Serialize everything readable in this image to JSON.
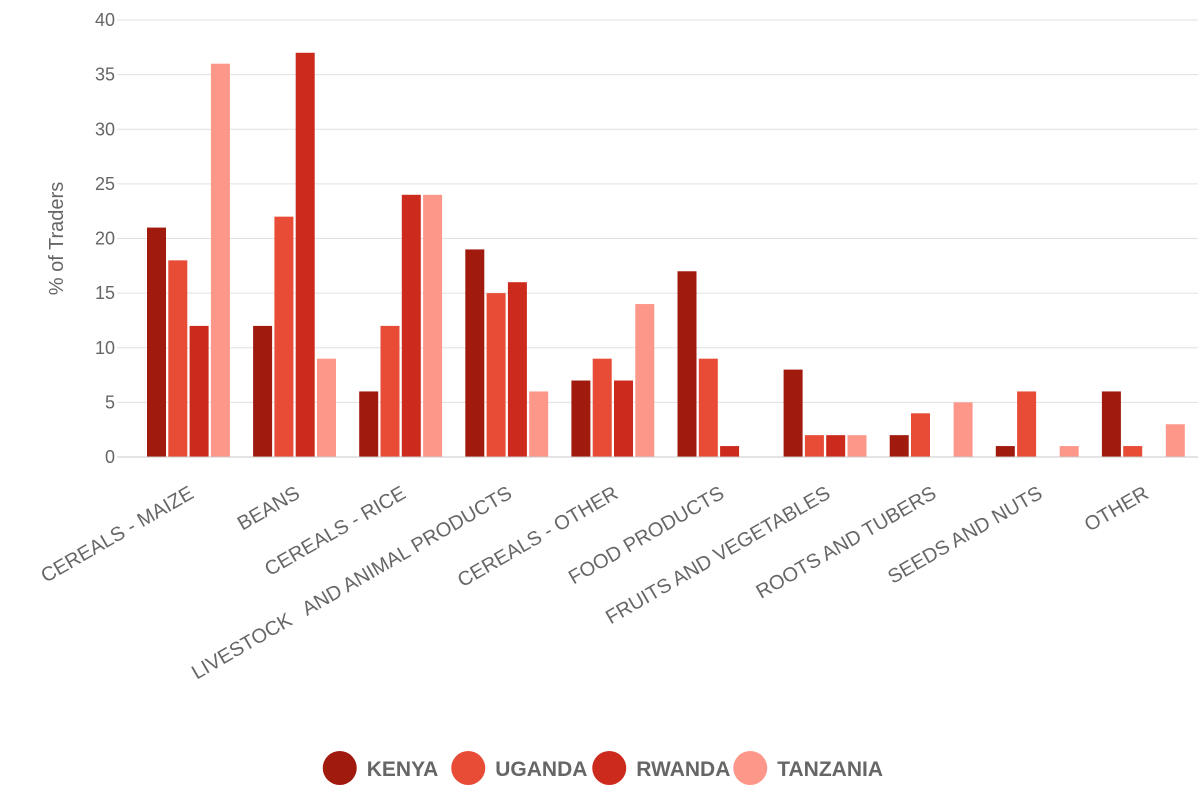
{
  "chart_data": {
    "type": "bar",
    "ylabel": "% of Traders",
    "ylim": [
      0,
      40
    ],
    "yticks": [
      0,
      5,
      10,
      15,
      20,
      25,
      30,
      35,
      40
    ],
    "grid": true,
    "legend_position": "bottom",
    "categories": [
      "CEREALS - MAIZE",
      "BEANS",
      "CEREALS - RICE",
      "LIVESTOCK   AND ANIMAL PRODUCTS",
      "CEREALS - OTHER",
      "FOOD PRODUCTS",
      "FRUITS AND VEGETABLES",
      "ROOTS AND TUBERS",
      "SEEDS AND NUTS",
      "OTHER"
    ],
    "series": [
      {
        "name": "KENYA",
        "color": "#a01a0d",
        "values": [
          21,
          12,
          6,
          19,
          7,
          17,
          8,
          2,
          1,
          6
        ]
      },
      {
        "name": "UGANDA",
        "color": "#e84b36",
        "values": [
          18,
          22,
          12,
          15,
          9,
          9,
          2,
          4,
          6,
          1
        ]
      },
      {
        "name": "RWANDA",
        "color": "#cc2a1c",
        "values": [
          12,
          37,
          24,
          16,
          7,
          1,
          2,
          0,
          0,
          0
        ]
      },
      {
        "name": "TANZANIA",
        "color": "#fd978a",
        "values": [
          36,
          9,
          24,
          6,
          14,
          0,
          2,
          5,
          1,
          3
        ]
      }
    ]
  }
}
